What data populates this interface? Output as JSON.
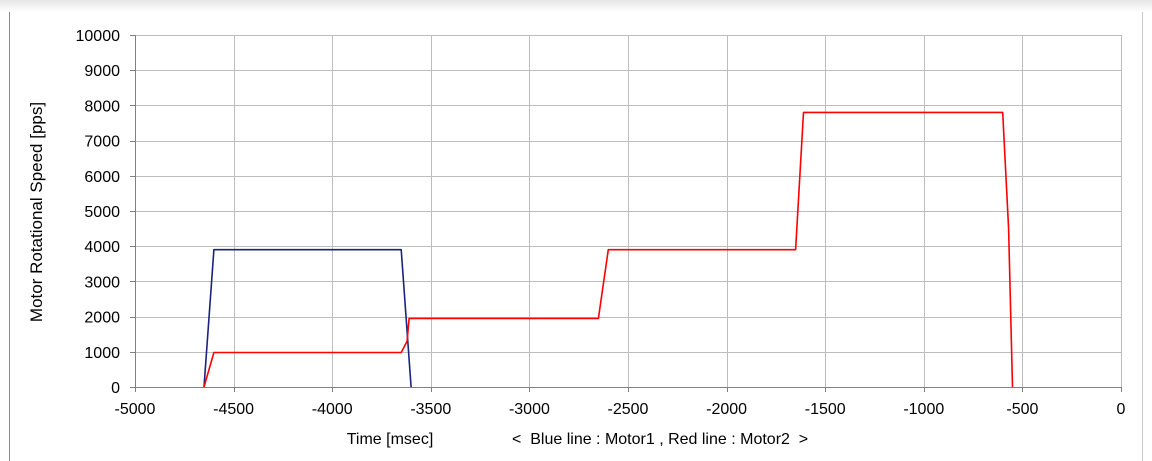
{
  "chart_data": {
    "type": "line",
    "xlabel": "Time [msec]",
    "ylabel": "Motor Rotational Speed [pps]",
    "legend_note": "<  Blue line : Motor1 , Red line : Motor2  >",
    "xlim": [
      -5000,
      0
    ],
    "ylim": [
      0,
      10000
    ],
    "x_ticks": [
      -5000,
      -4500,
      -4000,
      -3500,
      -3000,
      -2500,
      -2000,
      -1500,
      -1000,
      -500,
      0
    ],
    "y_ticks": [
      0,
      1000,
      2000,
      3000,
      4000,
      5000,
      6000,
      7000,
      8000,
      9000,
      10000
    ],
    "grid": true,
    "series": [
      {
        "color": "#1a237e",
        "x": [
          -4650,
          -4600,
          -3650,
          -3600
        ],
        "y": [
          0,
          3900,
          3900,
          0
        ]
      },
      {
        "color": "#ff0000",
        "x": [
          -4650,
          -4600,
          -3650,
          -3620,
          -3610,
          -2650,
          -2600,
          -1650,
          -1610,
          -600,
          -570,
          -550
        ],
        "y": [
          0,
          980,
          980,
          1300,
          1950,
          1950,
          3900,
          3900,
          7800,
          7800,
          4500,
          0
        ]
      }
    ]
  }
}
